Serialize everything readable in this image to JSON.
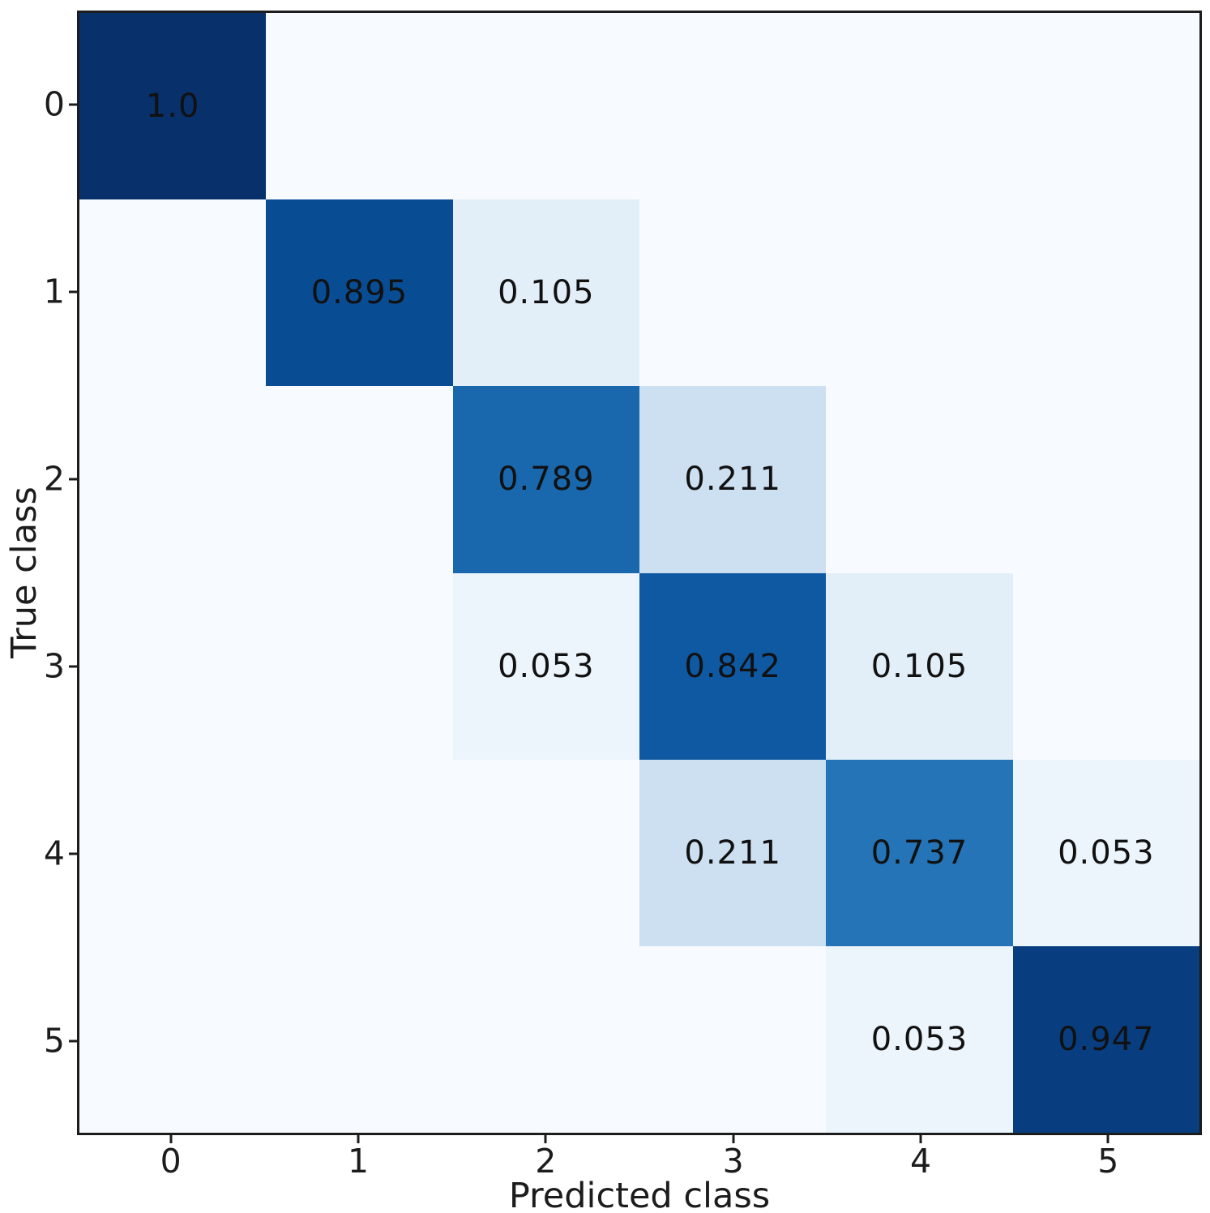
{
  "chart_data": {
    "type": "heatmap",
    "title": "",
    "xlabel": "Predicted class",
    "ylabel": "True class",
    "x_tick_labels": [
      "0",
      "1",
      "2",
      "3",
      "4",
      "5"
    ],
    "y_tick_labels": [
      "0",
      "1",
      "2",
      "3",
      "4",
      "5"
    ],
    "colormap": "Blues",
    "value_range": [
      0,
      1
    ],
    "grid": false,
    "legend": "none",
    "matrix": [
      [
        1.0,
        0,
        0,
        0,
        0,
        0
      ],
      [
        0,
        0.895,
        0.105,
        0,
        0,
        0
      ],
      [
        0,
        0,
        0.789,
        0.211,
        0,
        0
      ],
      [
        0,
        0,
        0.053,
        0.842,
        0.105,
        0
      ],
      [
        0,
        0,
        0,
        0.211,
        0.737,
        0.053
      ],
      [
        0,
        0,
        0,
        0,
        0.053,
        0.947
      ]
    ],
    "cell_labels": [
      [
        "1.0",
        "",
        "",
        "",
        "",
        ""
      ],
      [
        "",
        "0.895",
        "0.105",
        "",
        "",
        ""
      ],
      [
        "",
        "",
        "0.789",
        "0.211",
        "",
        ""
      ],
      [
        "",
        "",
        "0.053",
        "0.842",
        "0.105",
        ""
      ],
      [
        "",
        "",
        "",
        "0.211",
        "0.737",
        "0.053"
      ],
      [
        "",
        "",
        "",
        "",
        "0.053",
        "0.947"
      ]
    ],
    "cell_colors": [
      [
        "#08306b",
        "#f7fbff",
        "#f7fbff",
        "#f7fbff",
        "#f7fbff",
        "#f7fbff"
      ],
      [
        "#f7fbff",
        "#084c94",
        "#e2eef8",
        "#f7fbff",
        "#f7fbff",
        "#f7fbff"
      ],
      [
        "#f7fbff",
        "#f7fbff",
        "#1967ad",
        "#cde0f1",
        "#f7fbff",
        "#f7fbff"
      ],
      [
        "#f7fbff",
        "#f7fbff",
        "#ecf4fc",
        "#0f59a3",
        "#e2eef8",
        "#f7fbff"
      ],
      [
        "#f7fbff",
        "#f7fbff",
        "#f7fbff",
        "#cde0f1",
        "#2474b7",
        "#ecf4fc"
      ],
      [
        "#f7fbff",
        "#f7fbff",
        "#f7fbff",
        "#f7fbff",
        "#ecf4fc",
        "#083e80"
      ]
    ],
    "annotation_text_color": "#111111"
  },
  "layout_colors": {
    "background": "#ffffff",
    "spine": "#1c1c1c",
    "tick_text": "#1c1c1c"
  }
}
